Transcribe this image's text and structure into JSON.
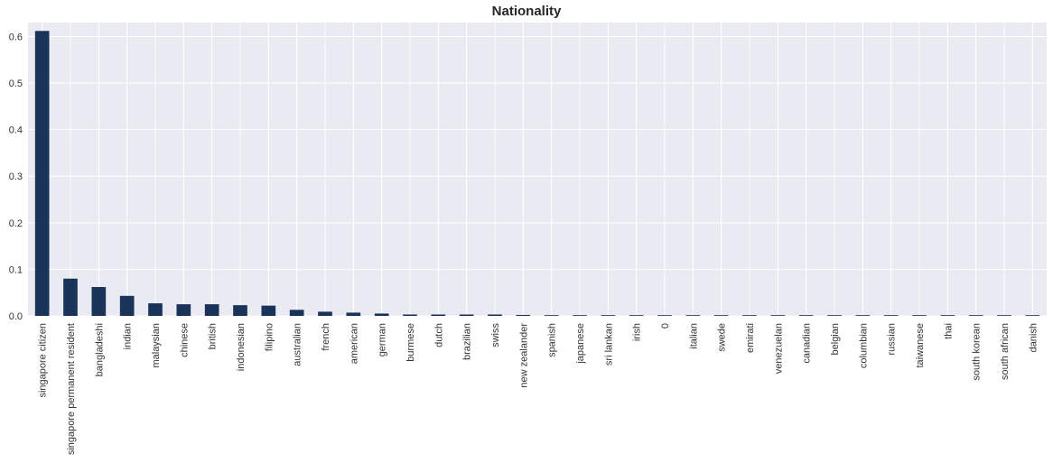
{
  "chart_data": {
    "type": "bar",
    "title": "Nationality",
    "xlabel": "",
    "ylabel": "",
    "ylim": [
      0,
      0.63
    ],
    "yticks": [
      0.0,
      0.1,
      0.2,
      0.3,
      0.4,
      0.5,
      0.6
    ],
    "ytick_labels": [
      "0.0",
      "0.1",
      "0.2",
      "0.3",
      "0.4",
      "0.5",
      "0.6"
    ],
    "grid": true,
    "legend": "none",
    "colors": {
      "bar": "#1a3358",
      "background": "#eaeaf2",
      "grid": "#ffffff"
    },
    "categories": [
      "singapore citizen",
      "singapore permanent resident",
      "bangladeshi",
      "indian",
      "malaysian",
      "chinese",
      "british",
      "indonesian",
      "filipino",
      "australian",
      "french",
      "american",
      "german",
      "burmese",
      "dutch",
      "brazilian",
      "swiss",
      "new zealander",
      "spanish",
      "japanese",
      "sri lankan",
      "irish",
      "0",
      "italian",
      "swede",
      "emirati",
      "venezuelan",
      "canadian",
      "belgian",
      "columbian",
      "russian",
      "taiwanese",
      "thai",
      "south korean",
      "south african",
      "danish"
    ],
    "values": [
      0.612,
      0.08,
      0.062,
      0.043,
      0.027,
      0.025,
      0.025,
      0.023,
      0.022,
      0.013,
      0.009,
      0.007,
      0.005,
      0.003,
      0.003,
      0.003,
      0.003,
      0.002,
      0.001,
      0.001,
      0.001,
      0.001,
      0.001,
      0.001,
      0.001,
      0.001,
      0.001,
      0.001,
      0.001,
      0.001,
      0.001,
      0.001,
      0.001,
      0.001,
      0.001,
      0.001
    ]
  }
}
